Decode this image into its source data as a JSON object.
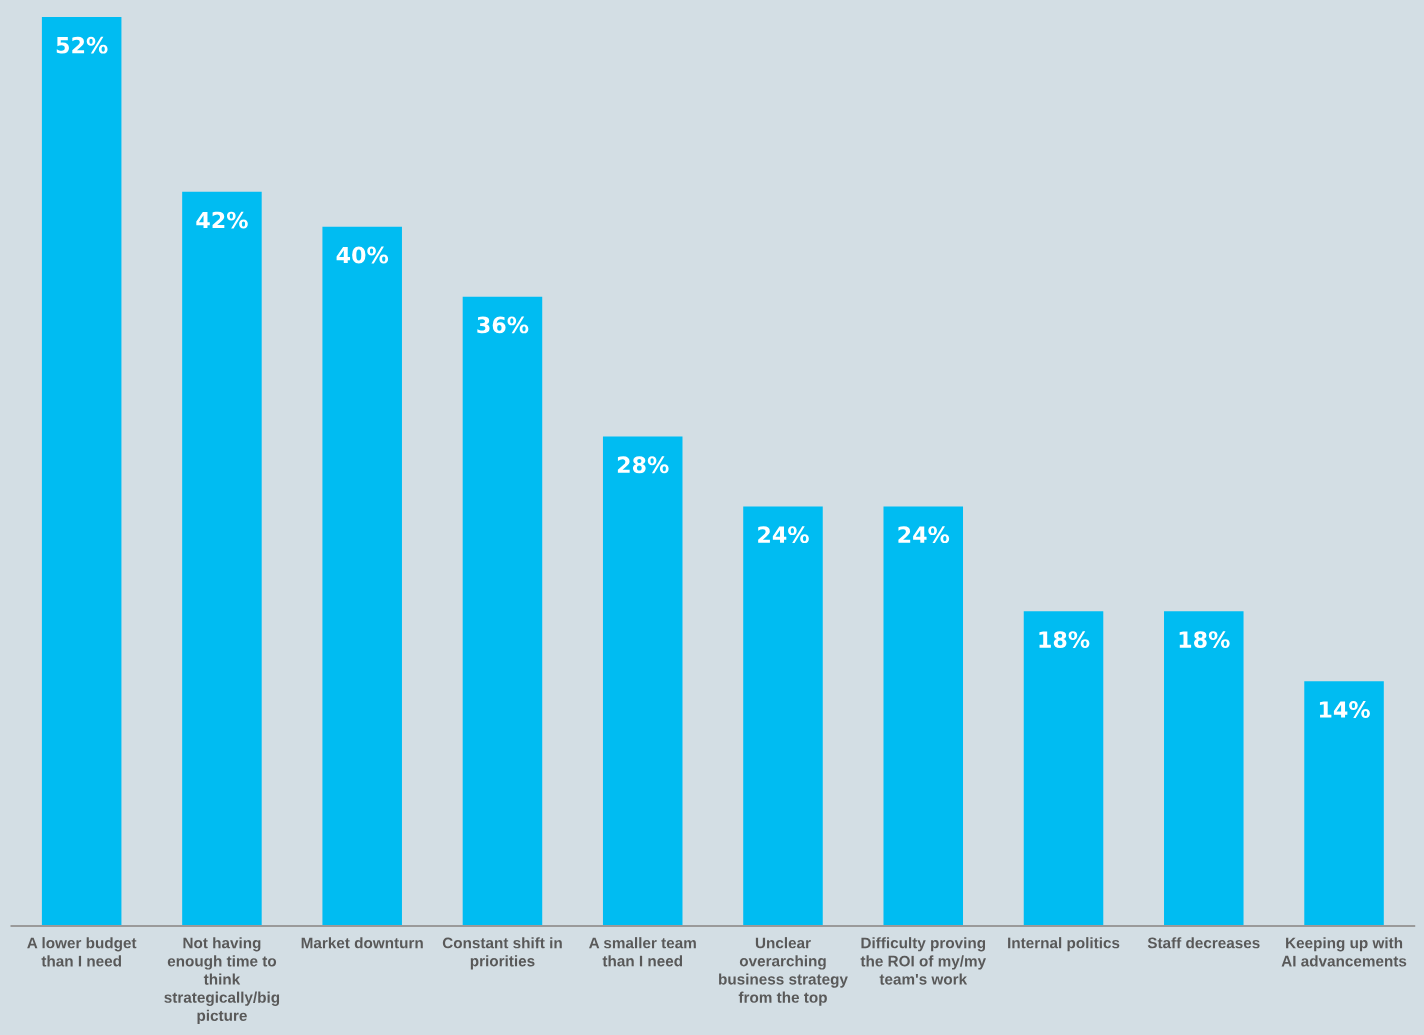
{
  "chart_data": {
    "type": "bar",
    "categories": [
      "A lower budget\nthan I need",
      "Not having\nenough time to\nthink\nstrategically/big\npicture",
      "Market downturn",
      "Constant shift in\npriorities",
      "A smaller team\nthan I need",
      "Unclear\noverarching\nbusiness strategy\nfrom the top",
      "Difficulty proving\nthe ROI of my/my\nteam's work",
      "Internal politics",
      "Staff decreases",
      "Keeping up with\nAI advancements"
    ],
    "values": [
      52,
      42,
      40,
      36,
      28,
      24,
      24,
      18,
      18,
      14
    ],
    "value_labels": [
      "52%",
      "42%",
      "40%",
      "36%",
      "28%",
      "24%",
      "24%",
      "18%",
      "18%",
      "14%"
    ],
    "color": "#00bcf2",
    "grid": false,
    "legend": false
  }
}
